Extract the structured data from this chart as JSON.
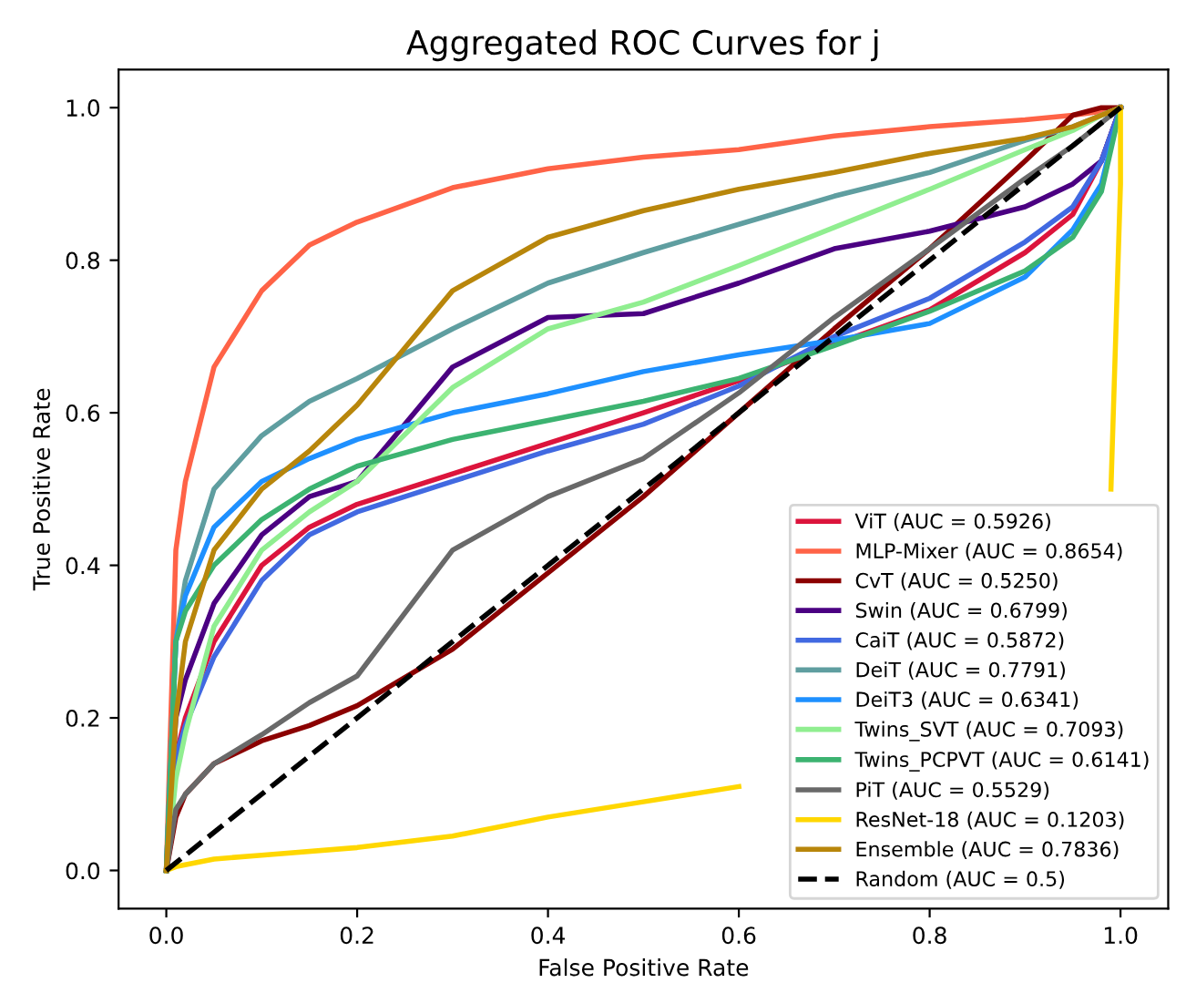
{
  "chart_data": {
    "type": "line",
    "title": "Aggregated ROC Curves for j",
    "xlabel": "False Positive Rate",
    "ylabel": "True Positive Rate",
    "x": [
      0,
      0.01,
      0.02,
      0.05,
      0.1,
      0.15,
      0.2,
      0.3,
      0.4,
      0.5,
      0.6,
      0.7,
      0.8,
      0.9,
      0.95,
      0.98,
      1
    ],
    "series": [
      {
        "name": "ViT (AUC = 0.5926)",
        "color": "#dc143c",
        "values": [
          0,
          0.15,
          0.2,
          0.3,
          0.4,
          0.45,
          0.48,
          0.52,
          0.56,
          0.6,
          0.642,
          0.69,
          0.735,
          0.81,
          0.86,
          0.93,
          1
        ]
      },
      {
        "name": "MLP-Mixer (AUC = 0.8654)",
        "color": "#ff6347",
        "values": [
          0,
          0.42,
          0.51,
          0.66,
          0.76,
          0.82,
          0.85,
          0.895,
          0.92,
          0.935,
          0.945,
          0.963,
          0.975,
          0.984,
          0.99,
          0.995,
          1
        ]
      },
      {
        "name": "CvT (AUC = 0.5250)",
        "color": "#8b0000",
        "values": [
          0,
          0.07,
          0.1,
          0.14,
          0.17,
          0.19,
          0.216,
          0.29,
          0.39,
          0.49,
          0.6,
          0.71,
          0.815,
          0.93,
          0.99,
          1,
          1
        ]
      },
      {
        "name": "Swin (AUC = 0.6799)",
        "color": "#4b0082",
        "values": [
          0,
          0.2,
          0.25,
          0.35,
          0.44,
          0.49,
          0.51,
          0.66,
          0.725,
          0.73,
          0.77,
          0.815,
          0.838,
          0.87,
          0.9,
          0.93,
          1
        ]
      },
      {
        "name": "CaiT (AUC = 0.5872)",
        "color": "#4169e1",
        "values": [
          0,
          0.15,
          0.19,
          0.28,
          0.38,
          0.44,
          0.47,
          0.51,
          0.55,
          0.585,
          0.635,
          0.7,
          0.75,
          0.824,
          0.87,
          0.93,
          1
        ]
      },
      {
        "name": "DeiT (AUC = 0.7791)",
        "color": "#5f9ea0",
        "values": [
          0,
          0.3,
          0.38,
          0.5,
          0.57,
          0.615,
          0.645,
          0.71,
          0.77,
          0.81,
          0.847,
          0.884,
          0.915,
          0.957,
          0.975,
          0.99,
          1
        ]
      },
      {
        "name": "DeiT3 (AUC = 0.6341)",
        "color": "#1e90ff",
        "values": [
          0,
          0.3,
          0.36,
          0.45,
          0.51,
          0.54,
          0.565,
          0.6,
          0.625,
          0.654,
          0.676,
          0.695,
          0.717,
          0.778,
          0.84,
          0.9,
          1
        ]
      },
      {
        "name": "Twins_SVT (AUC = 0.7093)",
        "color": "#90ee90",
        "values": [
          0,
          0.12,
          0.18,
          0.32,
          0.42,
          0.47,
          0.51,
          0.633,
          0.71,
          0.745,
          0.793,
          0.843,
          0.893,
          0.945,
          0.97,
          0.99,
          1
        ]
      },
      {
        "name": "Twins_PCPVT (AUC = 0.6141)",
        "color": "#3cb371",
        "values": [
          0,
          0.3,
          0.34,
          0.4,
          0.46,
          0.5,
          0.53,
          0.565,
          0.59,
          0.615,
          0.645,
          0.688,
          0.733,
          0.786,
          0.83,
          0.89,
          1
        ]
      },
      {
        "name": "PiT (AUC = 0.5529)",
        "color": "#696969",
        "values": [
          0,
          0.08,
          0.1,
          0.14,
          0.178,
          0.22,
          0.255,
          0.42,
          0.49,
          0.54,
          0.626,
          0.725,
          0.815,
          0.907,
          0.95,
          0.98,
          1
        ]
      },
      {
        "name": "ResNet-18 (AUC = 0.1203)",
        "color": "#ffd700",
        "x": [
          0,
          0.01,
          0.05,
          0.1,
          0.2,
          0.3,
          0.4,
          0.5,
          0.6,
          0.7,
          0.8,
          0.9,
          0.95,
          0.98,
          0.99,
          0.995,
          1,
          1
        ],
        "values": [
          0,
          0.005,
          0.015,
          0.02,
          0.03,
          0.045,
          0.07,
          0.09,
          0.11,
          null,
          null,
          null,
          null,
          null,
          0.5,
          0.7,
          0.9,
          1
        ]
      },
      {
        "name": "Ensemble (AUC = 0.7836)",
        "color": "#b8860b",
        "values": [
          0,
          0.2,
          0.3,
          0.42,
          0.5,
          0.55,
          0.61,
          0.76,
          0.83,
          0.865,
          0.893,
          0.915,
          0.94,
          0.96,
          0.975,
          0.99,
          1
        ]
      },
      {
        "name": "Random (AUC = 0.5)",
        "color": "#000000",
        "line_style": "dashed",
        "x": [
          0,
          1
        ],
        "values": [
          0,
          1
        ]
      }
    ],
    "xlim": [
      -0.05,
      1.05
    ],
    "ylim": [
      -0.05,
      1.05
    ],
    "xticks": [
      {
        "value": 0,
        "label": "0.0"
      },
      {
        "value": 0.2,
        "label": "0.2"
      },
      {
        "value": 0.4,
        "label": "0.4"
      },
      {
        "value": 0.6,
        "label": "0.6"
      },
      {
        "value": 0.8,
        "label": "0.8"
      },
      {
        "value": 1,
        "label": "1.0"
      }
    ],
    "yticks": [
      {
        "value": 0,
        "label": "0.0"
      },
      {
        "value": 0.2,
        "label": "0.2"
      },
      {
        "value": 0.4,
        "label": "0.4"
      },
      {
        "value": 0.6,
        "label": "0.6"
      },
      {
        "value": 0.8,
        "label": "0.8"
      },
      {
        "value": 1,
        "label": "1.0"
      }
    ],
    "legend": "lower right",
    "line_style": "solid"
  }
}
